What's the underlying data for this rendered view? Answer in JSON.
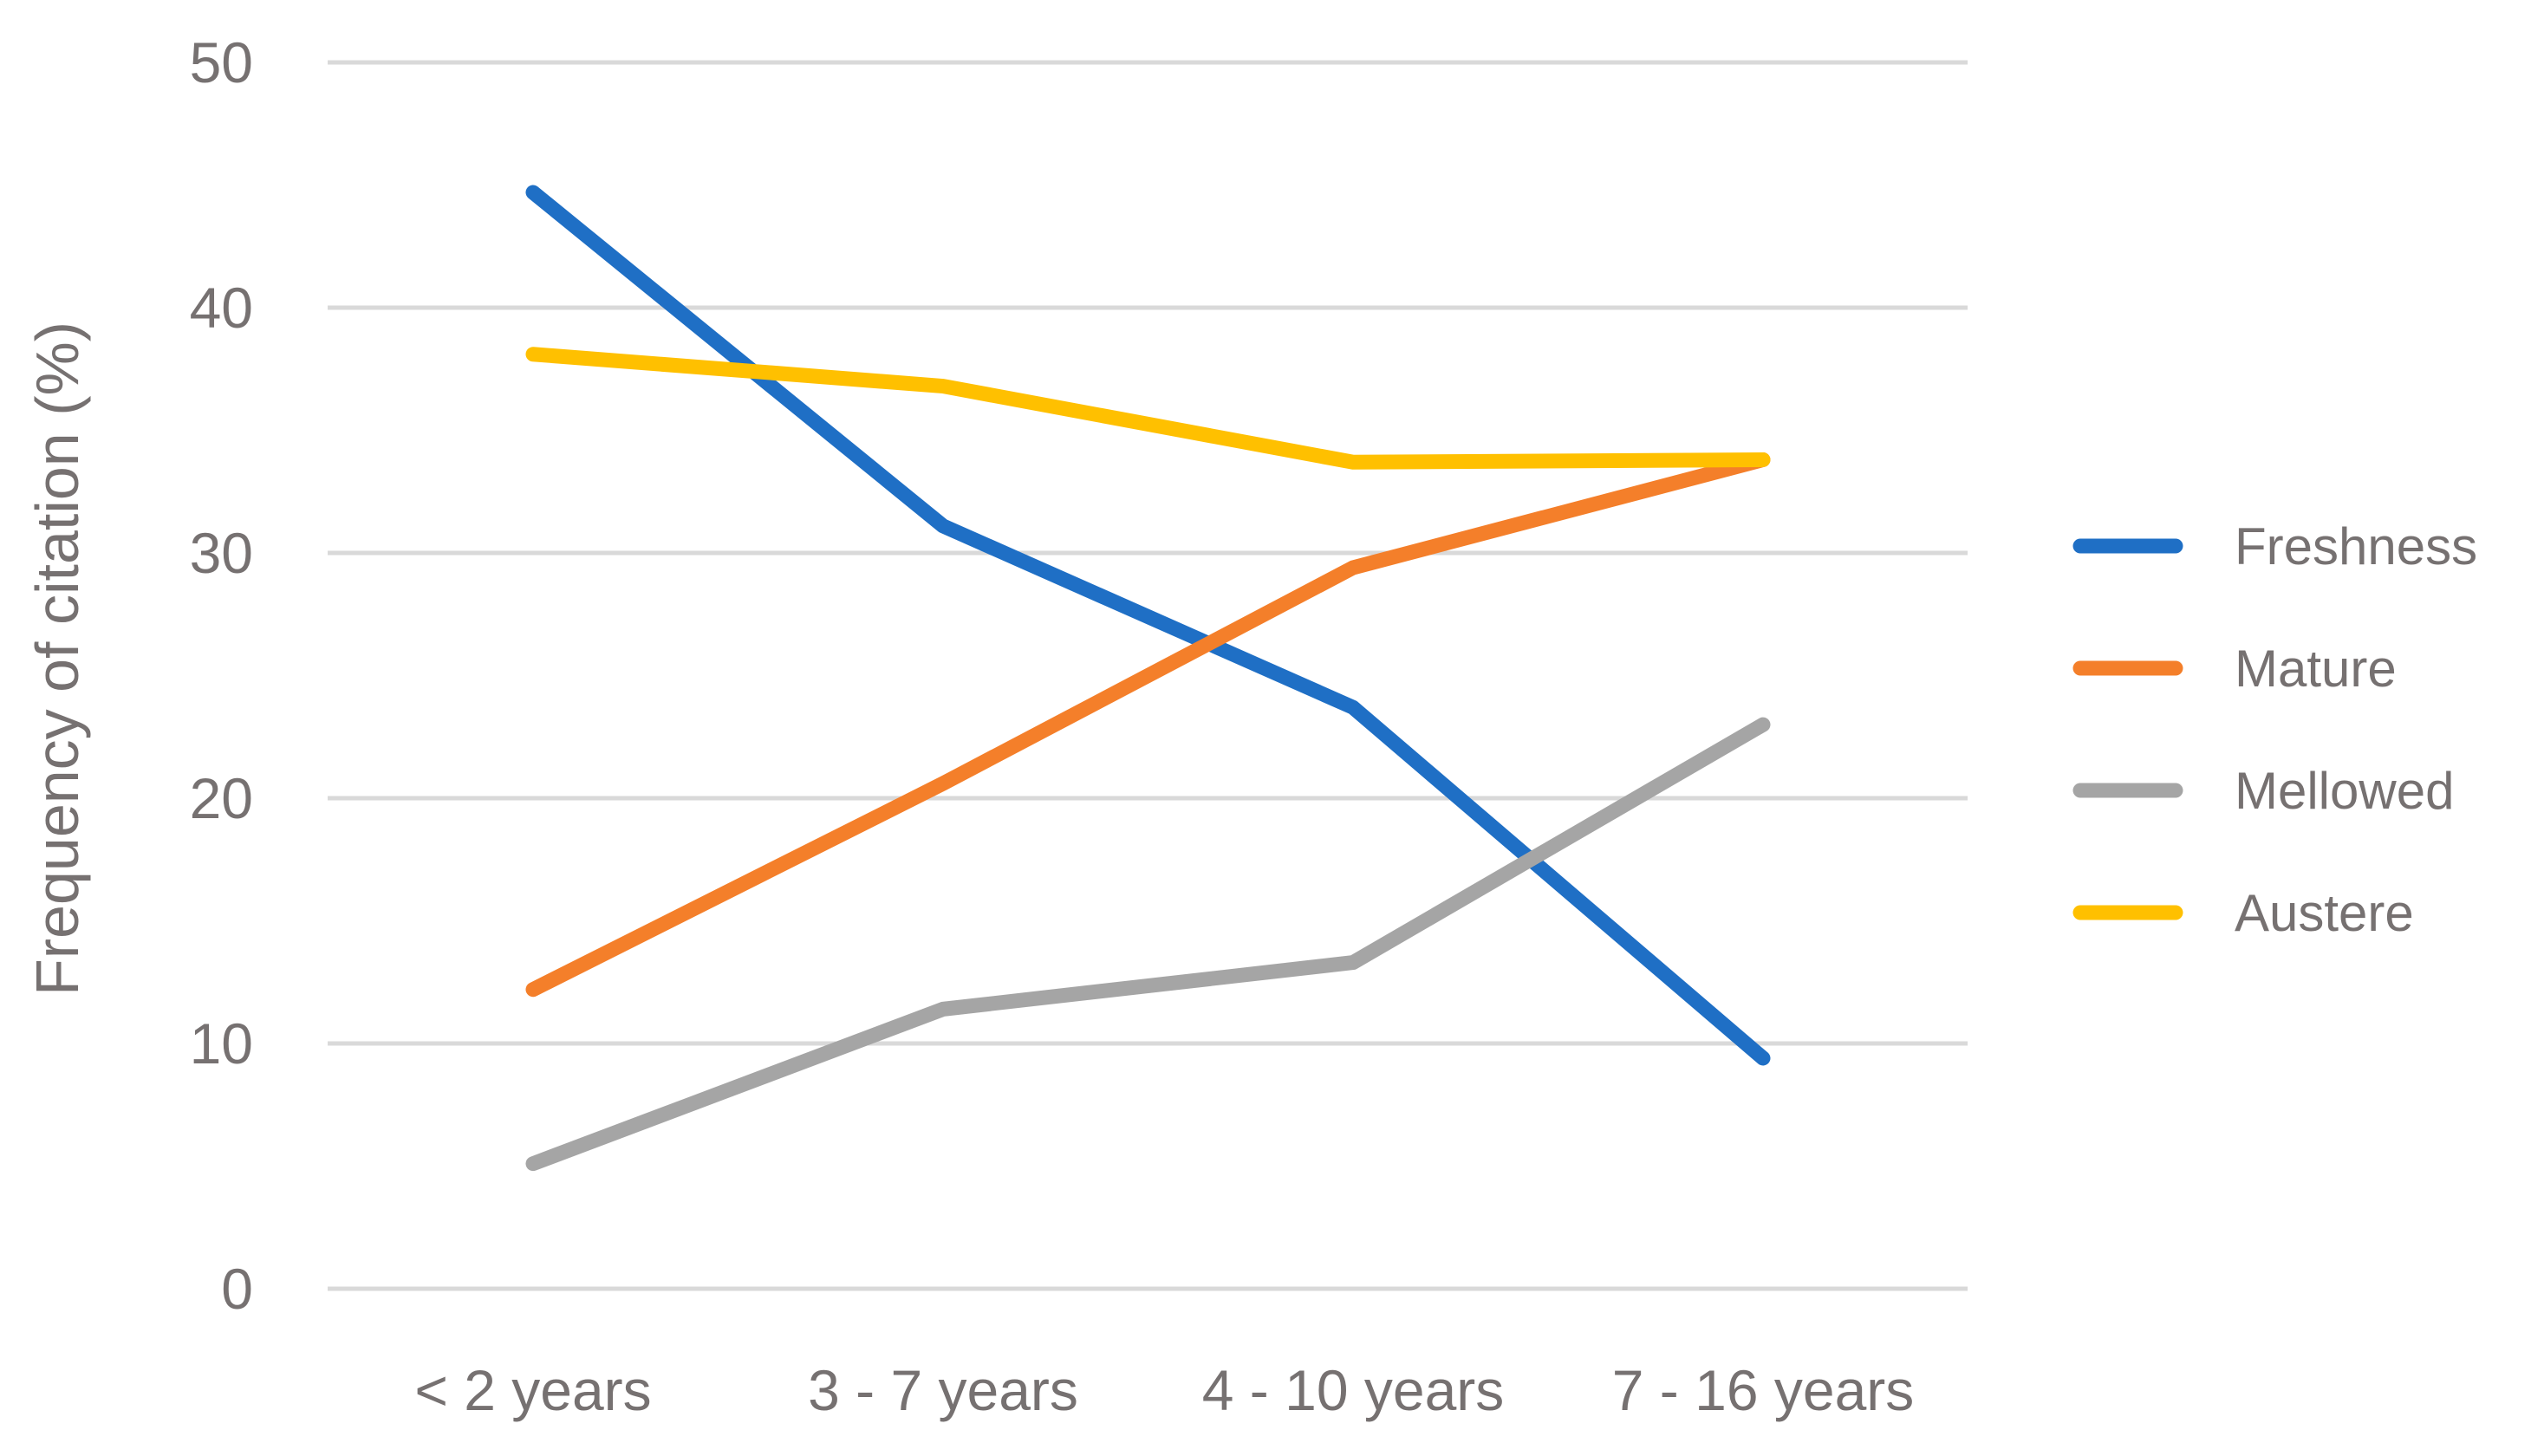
{
  "chart_data": {
    "type": "line",
    "title": "",
    "xlabel": "",
    "ylabel": "Frequency of citation (%)",
    "ylim": [
      0,
      50
    ],
    "yticks": [
      "0",
      "10",
      "20",
      "30",
      "40",
      "50"
    ],
    "categories": [
      "< 2 years",
      "3 - 7 years",
      "4 - 10 years",
      "7 - 16 years"
    ],
    "grid": true,
    "legend_position": "right",
    "series": [
      {
        "name": "Freshness",
        "color": "#1f6fc5",
        "values": [
          44.7,
          31.1,
          23.7,
          9.4
        ]
      },
      {
        "name": "Mature",
        "color": "#f47f2a",
        "values": [
          12.2,
          20.6,
          29.4,
          33.8
        ]
      },
      {
        "name": "Mellowed",
        "color": "#a5a5a5",
        "values": [
          5.1,
          11.4,
          13.3,
          23.0
        ]
      },
      {
        "name": "Austere",
        "color": "#ffc000",
        "values": [
          38.1,
          36.8,
          33.7,
          33.8
        ]
      }
    ]
  }
}
